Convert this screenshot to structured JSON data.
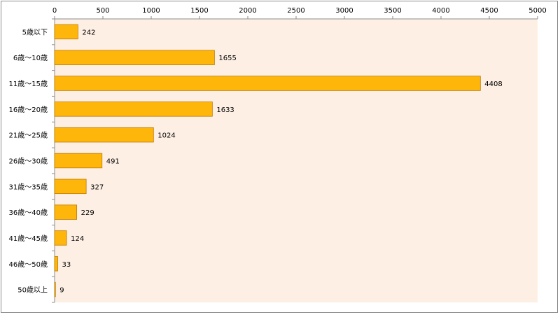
{
  "chart_data": {
    "type": "bar",
    "orientation": "horizontal",
    "categories": [
      "5歳以下",
      "6歳～10歳",
      "11歳～15歳",
      "16歳～20歳",
      "21歳～25歳",
      "26歳～30歳",
      "31歳～35歳",
      "36歳～40歳",
      "41歳～45歳",
      "46歳～50歳",
      "50歳以上"
    ],
    "values": [
      242,
      1655,
      4408,
      1633,
      1024,
      491,
      327,
      229,
      124,
      33,
      9
    ],
    "xlim": [
      0,
      5000
    ],
    "xticks": [
      0,
      500,
      1000,
      1500,
      2000,
      2500,
      3000,
      3500,
      4000,
      4500,
      5000
    ],
    "axis_position": "top",
    "grid": false,
    "legend": "none",
    "colors": {
      "bar_fill": "#FFB60A",
      "bar_stroke": "#C07A00",
      "plot_background": "#FDEFE4",
      "axis": "#8c8c8c"
    }
  }
}
